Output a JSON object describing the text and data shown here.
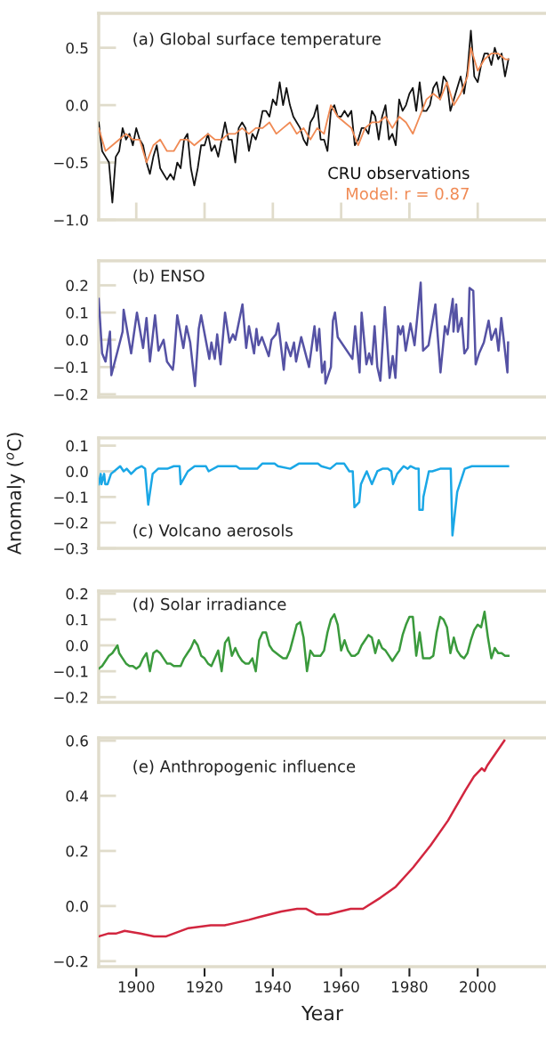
{
  "chart_data": [
    {
      "type": "line",
      "title": "(a) Global surface temperature",
      "xlim": [
        1889,
        2020
      ],
      "xticks": [
        {
          "value": 1900,
          "label": null
        },
        {
          "value": 1920,
          "label": null
        },
        {
          "value": 1940,
          "label": null
        },
        {
          "value": 1960,
          "label": null
        },
        {
          "value": 1980,
          "label": null
        },
        {
          "value": 2000,
          "label": null
        }
      ],
      "ylim": [
        -1.0,
        0.8
      ],
      "yticks": [
        {
          "value": 0.5,
          "label": "0.5"
        },
        {
          "value": 0.0,
          "label": "0.0"
        },
        {
          "value": -0.5,
          "label": "−0.5"
        },
        {
          "value": -1.0,
          "label": "−1.0"
        }
      ],
      "tick_labels": "y",
      "grid": false,
      "legend": "bottom right",
      "series": [
        {
          "name": "CRU observations",
          "color": "#111111",
          "x": [
            1889,
            1890,
            1891,
            1892,
            1893,
            1894,
            1895,
            1896,
            1897,
            1898,
            1899,
            1900,
            1901,
            1902,
            1903,
            1904,
            1905,
            1906,
            1907,
            1908,
            1909,
            1910,
            1911,
            1912,
            1913,
            1914,
            1915,
            1916,
            1917,
            1918,
            1919,
            1920,
            1921,
            1922,
            1923,
            1924,
            1925,
            1926,
            1927,
            1928,
            1929,
            1930,
            1931,
            1932,
            1933,
            1934,
            1935,
            1936,
            1937,
            1938,
            1939,
            1940,
            1941,
            1942,
            1943,
            1944,
            1945,
            1946,
            1947,
            1948,
            1949,
            1950,
            1951,
            1952,
            1953,
            1954,
            1955,
            1956,
            1957,
            1958,
            1959,
            1960,
            1961,
            1962,
            1963,
            1964,
            1965,
            1966,
            1967,
            1968,
            1969,
            1970,
            1971,
            1972,
            1973,
            1974,
            1975,
            1976,
            1977,
            1978,
            1979,
            1980,
            1981,
            1982,
            1983,
            1984,
            1985,
            1986,
            1987,
            1988,
            1989,
            1990,
            1991,
            1992,
            1993,
            1994,
            1995,
            1996,
            1997,
            1998,
            1999,
            2000,
            2001,
            2002,
            2003,
            2004,
            2005,
            2006,
            2007,
            2008,
            2009
          ],
          "values": [
            -0.15,
            -0.4,
            -0.45,
            -0.5,
            -0.85,
            -0.45,
            -0.4,
            -0.2,
            -0.3,
            -0.25,
            -0.35,
            -0.2,
            -0.3,
            -0.35,
            -0.5,
            -0.6,
            -0.45,
            -0.35,
            -0.55,
            -0.6,
            -0.65,
            -0.6,
            -0.65,
            -0.5,
            -0.55,
            -0.3,
            -0.25,
            -0.55,
            -0.7,
            -0.55,
            -0.35,
            -0.35,
            -0.25,
            -0.4,
            -0.35,
            -0.45,
            -0.3,
            -0.15,
            -0.3,
            -0.3,
            -0.5,
            -0.2,
            -0.15,
            -0.2,
            -0.4,
            -0.25,
            -0.3,
            -0.2,
            -0.05,
            -0.05,
            -0.1,
            0.05,
            0.0,
            0.2,
            0.0,
            0.15,
            0.0,
            -0.1,
            -0.15,
            -0.2,
            -0.3,
            -0.35,
            -0.15,
            -0.1,
            0.0,
            -0.3,
            -0.3,
            -0.4,
            -0.05,
            0.0,
            -0.1,
            -0.1,
            -0.05,
            -0.1,
            -0.05,
            -0.35,
            -0.3,
            -0.2,
            -0.2,
            -0.25,
            -0.05,
            -0.1,
            -0.3,
            -0.1,
            0.0,
            -0.3,
            -0.25,
            -0.35,
            0.05,
            -0.05,
            0.0,
            0.1,
            0.15,
            -0.05,
            0.2,
            -0.05,
            -0.05,
            0.0,
            0.15,
            0.2,
            0.05,
            0.25,
            0.2,
            -0.05,
            0.05,
            0.15,
            0.25,
            0.1,
            0.3,
            0.65,
            0.25,
            0.2,
            0.35,
            0.45,
            0.45,
            0.35,
            0.5,
            0.4,
            0.45,
            0.25,
            0.4
          ]
        },
        {
          "name": "Model: r = 0.87",
          "color": "#f08a54",
          "x": [
            1889,
            1891,
            1893,
            1895,
            1897,
            1899,
            1901,
            1903,
            1905,
            1907,
            1909,
            1911,
            1913,
            1915,
            1917,
            1919,
            1921,
            1923,
            1925,
            1927,
            1929,
            1931,
            1933,
            1935,
            1937,
            1939,
            1941,
            1943,
            1945,
            1947,
            1949,
            1951,
            1953,
            1955,
            1957,
            1959,
            1961,
            1963,
            1965,
            1967,
            1969,
            1971,
            1973,
            1975,
            1977,
            1979,
            1981,
            1983,
            1985,
            1987,
            1989,
            1991,
            1993,
            1995,
            1997,
            1998,
            2000,
            2002,
            2004,
            2006,
            2008,
            2009
          ],
          "values": [
            -0.2,
            -0.4,
            -0.35,
            -0.3,
            -0.25,
            -0.3,
            -0.3,
            -0.5,
            -0.35,
            -0.3,
            -0.4,
            -0.4,
            -0.3,
            -0.3,
            -0.35,
            -0.3,
            -0.25,
            -0.3,
            -0.3,
            -0.25,
            -0.25,
            -0.2,
            -0.25,
            -0.2,
            -0.2,
            -0.15,
            -0.25,
            -0.2,
            -0.15,
            -0.25,
            -0.2,
            -0.3,
            -0.2,
            -0.25,
            0.0,
            -0.1,
            -0.15,
            -0.2,
            -0.35,
            -0.2,
            -0.15,
            -0.15,
            -0.1,
            -0.2,
            -0.1,
            -0.15,
            -0.25,
            -0.1,
            0.05,
            0.1,
            0.05,
            0.2,
            0.0,
            0.1,
            0.25,
            0.5,
            0.3,
            0.4,
            0.45,
            0.45,
            0.4,
            0.4
          ]
        }
      ]
    },
    {
      "type": "line",
      "title": "(b) ENSO",
      "xlim": [
        1889,
        2020
      ],
      "ylim": [
        -0.21,
        0.29
      ],
      "yticks": [
        {
          "value": 0.2,
          "label": "0.2"
        },
        {
          "value": 0.1,
          "label": "0.1"
        },
        {
          "value": 0.0,
          "label": "0.0"
        },
        {
          "value": -0.1,
          "label": "−0.1"
        },
        {
          "value": -0.2,
          "label": "−0.2"
        }
      ],
      "tick_labels": "y",
      "grid": false,
      "series": [
        {
          "color": "#5552a4",
          "x": [
            1889,
            1890,
            1891,
            1892.3,
            1892.7,
            1896,
            1896.3,
            1898.5,
            1900.2,
            1902,
            1903,
            1904,
            1905.5,
            1906.5,
            1908,
            1909,
            1910.7,
            1911,
            1912,
            1913.8,
            1914.7,
            1915.8,
            1917.2,
            1918.3,
            1919,
            1921.4,
            1922,
            1923,
            1923.7,
            1924.7,
            1926,
            1927.3,
            1928.3,
            1929,
            1931.1,
            1932.2,
            1933,
            1934.5,
            1935.2,
            1935.8,
            1936.8,
            1938.8,
            1939.6,
            1940.9,
            1941.6,
            1943.2,
            1943.9,
            1945.2,
            1946.2,
            1946.8,
            1948.3,
            1950.6,
            1952.2,
            1952.9,
            1953.6,
            1954.4,
            1955.2,
            1955.4,
            1957,
            1957.6,
            1958.2,
            1959,
            1963.3,
            1964.1,
            1965.4,
            1966,
            1967.4,
            1968.2,
            1969,
            1969.8,
            1970.6,
            1971.5,
            1972.8,
            1974.2,
            1975.1,
            1975.9,
            1976.7,
            1977.4,
            1978.1,
            1978.9,
            1980.3,
            1981.5,
            1983.3,
            1984,
            1985.6,
            1987.6,
            1989.1,
            1990.4,
            1991.2,
            1992.7,
            1992.9,
            1993.7,
            1994.2,
            1995.3,
            1996.1,
            1997.1,
            1997.6,
            1998.7,
            1999.4,
            2000.4,
            2001.8,
            2003.2,
            2004,
            2005.3,
            2006.1,
            2006.9,
            2008.7,
            2008.9
          ],
          "values": [
            0.15,
            -0.05,
            -0.08,
            0.03,
            -0.13,
            0.03,
            0.11,
            -0.05,
            0.1,
            -0.03,
            0.08,
            -0.08,
            0.09,
            -0.04,
            0.0,
            -0.08,
            -0.11,
            -0.08,
            0.09,
            -0.03,
            0.05,
            -0.01,
            -0.17,
            0.04,
            0.09,
            -0.07,
            -0.01,
            -0.07,
            0.02,
            -0.09,
            0.1,
            -0.01,
            0.02,
            0.0,
            0.13,
            -0.03,
            0.05,
            -0.05,
            0.04,
            -0.02,
            0.01,
            -0.06,
            0.0,
            0.02,
            0.06,
            -0.11,
            -0.01,
            -0.06,
            -0.01,
            -0.08,
            0.01,
            -0.1,
            0.05,
            -0.04,
            0.04,
            -0.12,
            -0.08,
            -0.16,
            -0.1,
            0.07,
            0.1,
            0.01,
            -0.07,
            0.05,
            -0.12,
            0.1,
            -0.09,
            -0.05,
            -0.09,
            0.05,
            -0.1,
            -0.15,
            0.12,
            -0.14,
            -0.06,
            -0.14,
            0.05,
            0.02,
            0.05,
            -0.04,
            0.06,
            -0.02,
            0.21,
            -0.04,
            -0.02,
            0.13,
            -0.12,
            0.05,
            0.02,
            0.15,
            0.03,
            0.13,
            0.03,
            0.08,
            -0.05,
            -0.03,
            0.19,
            0.18,
            -0.09,
            -0.05,
            -0.01,
            0.07,
            0.0,
            0.04,
            -0.04,
            0.08,
            -0.12,
            -0.01
          ]
        }
      ]
    },
    {
      "type": "line",
      "title": "(c) Volcano aerosols",
      "ylabel": "Anomaly ($^{o}$C)",
      "xlim": [
        1889,
        2020
      ],
      "ylim": [
        -0.3,
        0.13
      ],
      "yticks": [
        {
          "value": 0.1,
          "label": "0.1"
        },
        {
          "value": 0.0,
          "label": "0.0"
        },
        {
          "value": -0.1,
          "label": "−0.1"
        },
        {
          "value": -0.2,
          "label": "−0.2"
        },
        {
          "value": -0.3,
          "label": "−0.3"
        }
      ],
      "tick_labels": "y",
      "grid": false,
      "series": [
        {
          "color": "#1aa7e6",
          "x": [
            1889,
            1889.6,
            1889.8,
            1890.6,
            1890.9,
            1891.6,
            1892.6,
            1895.3,
            1896.3,
            1897.2,
            1898.5,
            1900,
            1901.6,
            1902.6,
            1903.5,
            1904.8,
            1906.4,
            1907.9,
            1909.1,
            1911,
            1912.7,
            1913,
            1915.1,
            1917.1,
            1920.4,
            1921.2,
            1924,
            1927.3,
            1929.3,
            1930.3,
            1931.9,
            1935.4,
            1936.9,
            1940.5,
            1941.5,
            1945.1,
            1947.6,
            1950.2,
            1953.2,
            1954.2,
            1956.8,
            1958.6,
            1960.9,
            1962.4,
            1963.4,
            1963.9,
            1965.3,
            1965.8,
            1966.8,
            1967.5,
            1969,
            1970.6,
            1972.1,
            1973.7,
            1974.7,
            1975.2,
            1976.4,
            1978.3,
            1979.5,
            1980.3,
            1981.9,
            1982.7,
            1982.9,
            1983.9,
            1984.1,
            1985.7,
            1986.7,
            1989,
            1992.1,
            1992.6,
            1994,
            1996.2,
            1998.3,
            2008.9
          ],
          "values": [
            -0.05,
            -0.01,
            -0.05,
            -0.01,
            -0.05,
            -0.05,
            -0.01,
            0.02,
            0.0,
            0.01,
            -0.01,
            0.01,
            0.02,
            0.01,
            -0.13,
            -0.01,
            0.01,
            0.01,
            0.01,
            0.02,
            0.02,
            -0.05,
            0.0,
            0.02,
            0.02,
            0.0,
            0.02,
            0.02,
            0.02,
            0.01,
            0.01,
            0.01,
            0.03,
            0.03,
            0.02,
            0.01,
            0.03,
            0.03,
            0.03,
            0.02,
            0.01,
            0.03,
            0.03,
            0.0,
            0.0,
            -0.14,
            -0.12,
            -0.05,
            -0.02,
            0.0,
            -0.05,
            0.0,
            0.01,
            0.01,
            0.0,
            -0.05,
            -0.01,
            0.02,
            0.01,
            0.02,
            0.01,
            0.01,
            -0.15,
            -0.15,
            -0.1,
            0.0,
            0.0,
            0.01,
            0.01,
            -0.25,
            -0.08,
            0.01,
            0.02,
            0.02
          ]
        }
      ]
    },
    {
      "type": "line",
      "title": "(d) Solar irradiance",
      "xlim": [
        1889,
        2020
      ],
      "ylim": [
        -0.22,
        0.21
      ],
      "yticks": [
        {
          "value": 0.2,
          "label": "0.2"
        },
        {
          "value": 0.1,
          "label": "0.1"
        },
        {
          "value": 0.0,
          "label": "0.0"
        },
        {
          "value": -0.1,
          "label": "−0.1"
        },
        {
          "value": -0.2,
          "label": "−0.2"
        }
      ],
      "tick_labels": "y",
      "grid": false,
      "series": [
        {
          "color": "#3a9a3c",
          "x": [
            1889,
            1890,
            1891,
            1892,
            1893,
            1894,
            1894.5,
            1895,
            1896,
            1897,
            1898,
            1899,
            1900,
            1901,
            1902,
            1903,
            1904,
            1905,
            1906,
            1907,
            1908,
            1909,
            1910,
            1911,
            1912,
            1913,
            1914,
            1915,
            1916,
            1917,
            1918,
            1919,
            1920,
            1921,
            1922,
            1923,
            1924,
            1925,
            1926,
            1927,
            1928,
            1929,
            1930,
            1931,
            1932,
            1933,
            1934,
            1935,
            1936,
            1937,
            1938,
            1939,
            1940,
            1941,
            1942,
            1943,
            1944,
            1945,
            1946,
            1947,
            1948,
            1949,
            1950,
            1951,
            1952,
            1953,
            1954,
            1955,
            1956,
            1957,
            1958,
            1959,
            1960,
            1961,
            1962,
            1963,
            1964,
            1965,
            1966,
            1967,
            1968,
            1969,
            1970,
            1971,
            1972,
            1973,
            1974,
            1975,
            1976,
            1977,
            1978,
            1979,
            1980,
            1981,
            1982,
            1983,
            1984,
            1985,
            1986,
            1987,
            1988,
            1989,
            1990,
            1991,
            1992,
            1993,
            1994,
            1995,
            1996,
            1997,
            1998,
            1999,
            2000,
            2001,
            2002,
            2003,
            2004,
            2005,
            2006,
            2007,
            2008,
            2009
          ],
          "values": [
            -0.09,
            -0.08,
            -0.06,
            -0.04,
            -0.03,
            -0.01,
            0.0,
            -0.03,
            -0.05,
            -0.07,
            -0.08,
            -0.08,
            -0.09,
            -0.08,
            -0.05,
            -0.03,
            -0.1,
            -0.03,
            -0.02,
            -0.03,
            -0.05,
            -0.07,
            -0.07,
            -0.08,
            -0.08,
            -0.08,
            -0.05,
            -0.03,
            -0.01,
            0.02,
            0.0,
            -0.04,
            -0.05,
            -0.07,
            -0.08,
            -0.05,
            -0.02,
            -0.1,
            0.01,
            0.03,
            -0.04,
            -0.01,
            -0.04,
            -0.06,
            -0.07,
            -0.07,
            -0.05,
            -0.1,
            0.02,
            0.05,
            0.05,
            0.0,
            -0.02,
            -0.03,
            -0.04,
            -0.05,
            -0.05,
            -0.02,
            0.03,
            0.08,
            0.09,
            0.03,
            -0.1,
            -0.02,
            -0.04,
            -0.04,
            -0.04,
            -0.02,
            0.05,
            0.1,
            0.12,
            0.08,
            -0.02,
            0.02,
            -0.02,
            -0.04,
            -0.04,
            -0.03,
            0.0,
            0.02,
            0.04,
            0.03,
            -0.03,
            0.02,
            -0.01,
            -0.02,
            -0.04,
            -0.06,
            -0.04,
            -0.02,
            0.04,
            0.08,
            0.11,
            0.11,
            -0.04,
            0.05,
            -0.05,
            -0.05,
            -0.05,
            -0.04,
            0.05,
            0.11,
            0.1,
            0.07,
            -0.03,
            0.03,
            -0.02,
            -0.04,
            -0.05,
            -0.03,
            0.02,
            0.06,
            0.08,
            0.07,
            0.13,
            0.03,
            -0.05,
            -0.01,
            -0.03,
            -0.03,
            -0.04,
            -0.04
          ]
        }
      ]
    },
    {
      "type": "line",
      "title": "(e) Anthropogenic influence",
      "xlabel": "Year",
      "xlim": [
        1889,
        2020
      ],
      "xticks": [
        1900,
        1920,
        1940,
        1960,
        1980,
        2000
      ],
      "ylim": [
        -0.22,
        0.61
      ],
      "yticks": [
        {
          "value": 0.6,
          "label": "0.6"
        },
        {
          "value": 0.4,
          "label": "0.4"
        },
        {
          "value": 0.2,
          "label": "0.2"
        },
        {
          "value": 0.0,
          "label": "0.0"
        },
        {
          "value": -0.2,
          "label": "−0.2"
        }
      ],
      "grid": false,
      "series": [
        {
          "color": "#d2263f",
          "x": [
            1889,
            1891.7,
            1894,
            1896.6,
            1901.2,
            1905.2,
            1908.8,
            1915.3,
            1921.8,
            1925.9,
            1933,
            1936,
            1942.5,
            1947.1,
            1949.7,
            1952.7,
            1956.2,
            1962.8,
            1966.4,
            1971.5,
            1976,
            1981.1,
            1986.2,
            1991.3,
            1996.4,
            1998.9,
            2001.2,
            2002,
            2002.8,
            2007.8
          ],
          "values": [
            -0.11,
            -0.1,
            -0.1,
            -0.09,
            -0.1,
            -0.11,
            -0.11,
            -0.08,
            -0.07,
            -0.07,
            -0.05,
            -0.04,
            -0.02,
            -0.01,
            -0.01,
            -0.03,
            -0.03,
            -0.01,
            -0.01,
            0.03,
            0.07,
            0.14,
            0.22,
            0.31,
            0.42,
            0.47,
            0.5,
            0.49,
            0.51,
            0.6
          ]
        }
      ]
    }
  ]
}
